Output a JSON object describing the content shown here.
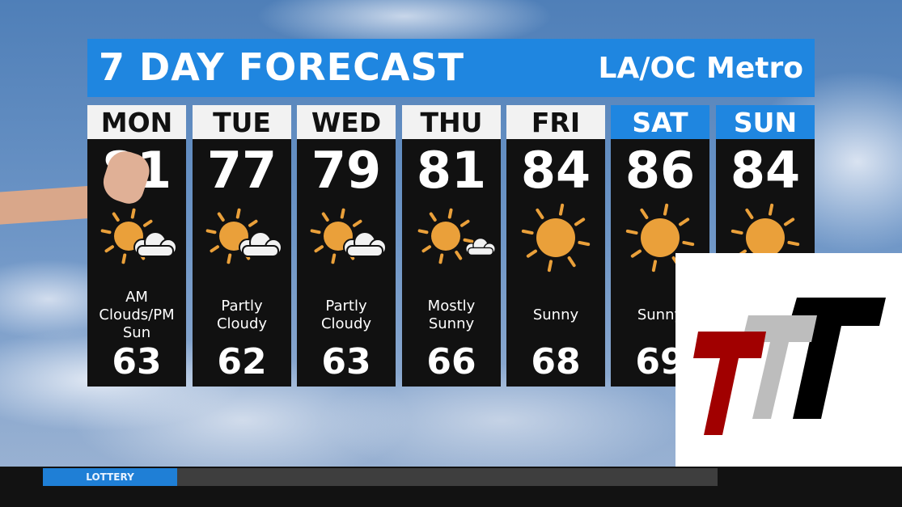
{
  "header": {
    "title": "7 DAY FORECAST",
    "region": "LA/OC Metro"
  },
  "colors": {
    "accent": "#1f86e0",
    "sun": "#eaa03a",
    "panel": "#111111"
  },
  "days": [
    {
      "day": "MON",
      "high": "81",
      "low": "63",
      "condition": "AM Clouds/PM Sun",
      "icon": "partly-cloudy-icon",
      "weekend": false
    },
    {
      "day": "TUE",
      "high": "77",
      "low": "62",
      "condition": "Partly Cloudy",
      "icon": "partly-cloudy-icon",
      "weekend": false
    },
    {
      "day": "WED",
      "high": "79",
      "low": "63",
      "condition": "Partly Cloudy",
      "icon": "partly-cloudy-icon",
      "weekend": false
    },
    {
      "day": "THU",
      "high": "81",
      "low": "66",
      "condition": "Mostly Sunny",
      "icon": "mostly-sunny-icon",
      "weekend": false
    },
    {
      "day": "FRI",
      "high": "84",
      "low": "68",
      "condition": "Sunny",
      "icon": "sunny-icon",
      "weekend": false
    },
    {
      "day": "SAT",
      "high": "86",
      "low": "69",
      "condition": "Sunny",
      "icon": "sunny-icon",
      "weekend": true
    },
    {
      "day": "SUN",
      "high": "84",
      "low": "",
      "condition": "",
      "icon": "sunny-icon",
      "weekend": true
    }
  ],
  "ticker": {
    "label": "LOTTERY"
  }
}
